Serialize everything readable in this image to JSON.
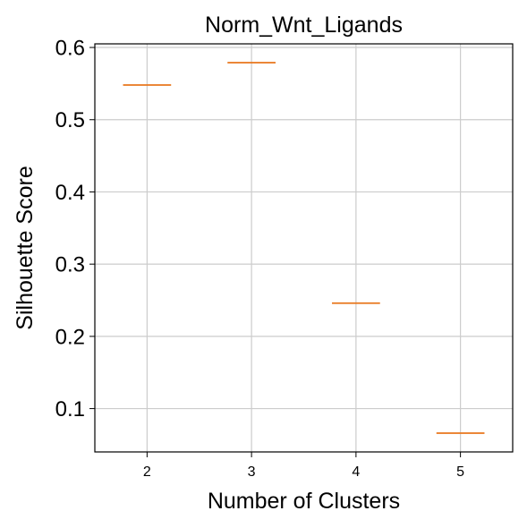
{
  "chart_data": {
    "type": "box",
    "title": "Norm_Wnt_Ligands",
    "xlabel": "Number of Clusters",
    "ylabel": "Silhouette Score",
    "categories": [
      "2",
      "3",
      "4",
      "5"
    ],
    "values": [
      0.548,
      0.579,
      0.246,
      0.066
    ],
    "ylim": [
      0.04,
      0.605
    ],
    "yticks": [
      "0.1",
      "0.2",
      "0.3",
      "0.4",
      "0.5",
      "0.6"
    ],
    "grid": true,
    "median_color": "#e8761c",
    "grid_color": "#cccccc"
  }
}
